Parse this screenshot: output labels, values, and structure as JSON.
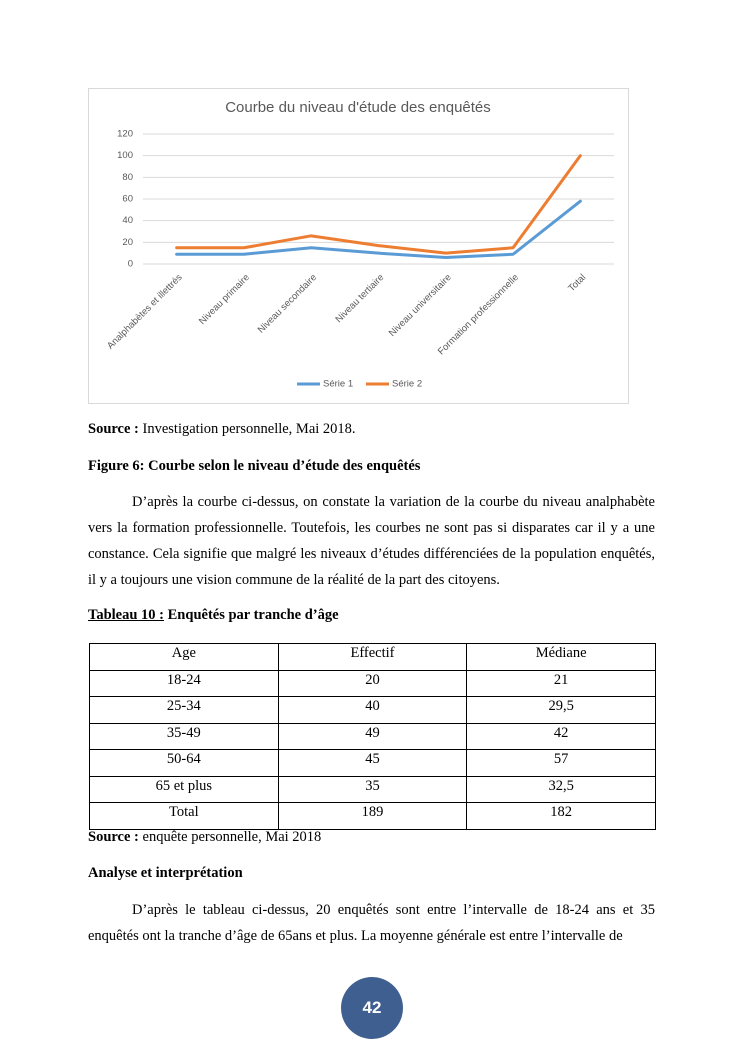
{
  "chart_data": {
    "type": "line",
    "title": "Courbe du niveau d'étude des enquêtés",
    "categories": [
      "Analphabètes et illettrés",
      "Niveau primaire",
      "Niveau secondaire",
      "Niveau tertiaire",
      "Niveau universitaire",
      "Formation professionnelle",
      "Total"
    ],
    "series": [
      {
        "name": "Série 1",
        "color": "#5b9bd5",
        "values": [
          9,
          9,
          15,
          10,
          6,
          9,
          58
        ]
      },
      {
        "name": "Série 2",
        "color": "#ed7d31",
        "values": [
          15,
          15,
          26,
          17,
          10,
          15,
          100
        ]
      }
    ],
    "ylim": [
      0,
      120
    ],
    "yticks": [
      0,
      20,
      40,
      60,
      80,
      100,
      120
    ],
    "grid": true,
    "legend": "bottom"
  },
  "source1": {
    "label": "Source :",
    "text": "Investigation personnelle, Mai 2018."
  },
  "figure_caption": "Figure 6: Courbe selon le niveau d’étude des enquêtés",
  "paragraph1": "D’après la courbe ci-dessus, on constate la variation de la courbe du niveau analphabète vers la formation professionnelle. Toutefois, les courbes ne sont pas si disparates car il y a une constance. Cela signifie que malgré les niveaux d’études différenciées de la population enquêtés, il y a toujours une vision commune de la réalité de la part des citoyens.",
  "table_caption": {
    "label": "Tableau 10 :",
    "text": "Enquêtés par tranche d’âge"
  },
  "table": {
    "header": [
      "Age",
      "Effectif",
      "Médiane"
    ],
    "rows": [
      [
        "18-24",
        "20",
        "21"
      ],
      [
        "25-34",
        "40",
        "29,5"
      ],
      [
        "35-49",
        "49",
        "42"
      ],
      [
        "50-64",
        "45",
        "57"
      ],
      [
        "65 et plus",
        "35",
        "32,5"
      ],
      [
        "Total",
        "189",
        "182"
      ]
    ]
  },
  "source2": {
    "label": "Source :",
    "text": "enquête personnelle, Mai 2018"
  },
  "section_title": "Analyse et interprétation",
  "paragraph2": "D’après le tableau ci-dessus, 20 enquêtés sont entre l’intervalle de 18-24 ans et 35 enquêtés ont la tranche d’âge de 65ans et plus. La moyenne générale est entre l’intervalle de",
  "page_number": "42"
}
